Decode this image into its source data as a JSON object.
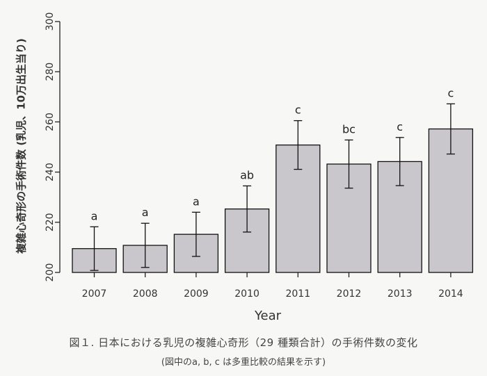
{
  "chart_data": {
    "type": "bar",
    "categories": [
      "2007",
      "2008",
      "2009",
      "2010",
      "2011",
      "2012",
      "2013",
      "2014"
    ],
    "values": [
      209.5,
      210.8,
      215.2,
      225.3,
      250.8,
      243.2,
      244.2,
      257.2
    ],
    "error": [
      8.7,
      8.8,
      8.8,
      9.2,
      9.7,
      9.6,
      9.6,
      10.0
    ],
    "letters": [
      "a",
      "a",
      "a",
      "ab",
      "c",
      "bc",
      "c",
      "c"
    ],
    "ylim": [
      200,
      300
    ],
    "yticks": [
      200,
      220,
      240,
      260,
      280,
      300
    ],
    "xlabel": "Year",
    "ylabel": "複雑心奇形の手術件数 (乳児、10万出生当り)",
    "bar_color": "#c9c7cb",
    "edge_color": "#111111"
  },
  "caption": {
    "main": "図１. 日本における乳児の複雑心奇形（29 種類合計）の手術件数の変化",
    "sub": "(図中のa, b, c は多重比較の結果を示す)"
  }
}
